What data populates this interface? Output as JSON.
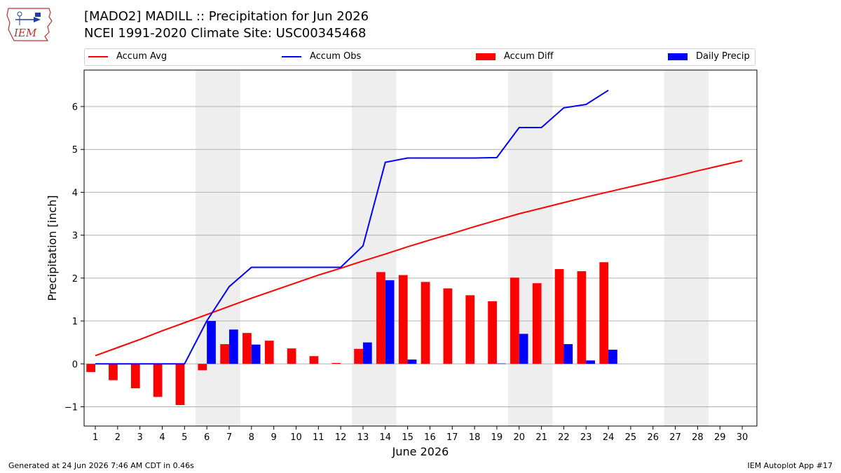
{
  "header": {
    "title_line1": "[MADO2] MADILL :: Precipitation for Jun 2026",
    "title_line2": "NCEI 1991-2020 Climate Site: USC00345468",
    "logo_text": "IEM"
  },
  "footer": {
    "left": "Generated at 24 Jun 2026 7:46 AM CDT in 0.46s",
    "right": "IEM Autoplot App #17"
  },
  "legend": {
    "avg": "Accum Avg",
    "obs": "Accum Obs",
    "diff": "Accum Diff",
    "daily": "Daily Precip"
  },
  "colors": {
    "avg": "#ff0000",
    "obs": "#0000ff",
    "diff": "#ff0000",
    "daily": "#0000ff",
    "weekend_shade": "#eeeeee",
    "grid": "#b0b0b0"
  },
  "chart_data": {
    "type": "bar",
    "xlabel": "June 2026",
    "ylabel": "Precipitation [inch]",
    "ylim": [
      -1.45,
      6.85
    ],
    "yticks": [
      -1,
      0,
      1,
      2,
      3,
      4,
      5,
      6
    ],
    "ytick_labels": [
      "−1",
      "0",
      "1",
      "2",
      "3",
      "4",
      "5",
      "6"
    ],
    "grid": "horizontal",
    "legend_position": "top",
    "days": [
      1,
      2,
      3,
      4,
      5,
      6,
      7,
      8,
      9,
      10,
      11,
      12,
      13,
      14,
      15,
      16,
      17,
      18,
      19,
      20,
      21,
      22,
      23,
      24,
      25,
      26,
      27,
      28,
      29,
      30
    ],
    "weekend_shading": [
      [
        6,
        7
      ],
      [
        13,
        14
      ],
      [
        20,
        21
      ],
      [
        27,
        28
      ]
    ],
    "series": [
      {
        "name": "Accum Avg",
        "kind": "line",
        "x": [
          1,
          2,
          3,
          4,
          5,
          6,
          7,
          8,
          9,
          10,
          11,
          12,
          13,
          14,
          15,
          16,
          17,
          18,
          19,
          20,
          21,
          22,
          23,
          24,
          25,
          26,
          27,
          28,
          29,
          30
        ],
        "values": [
          0.19,
          0.38,
          0.57,
          0.77,
          0.96,
          1.15,
          1.34,
          1.53,
          1.71,
          1.89,
          2.07,
          2.23,
          2.4,
          2.56,
          2.73,
          2.89,
          3.04,
          3.2,
          3.35,
          3.5,
          3.63,
          3.76,
          3.89,
          4.01,
          4.13,
          4.25,
          4.37,
          4.5,
          4.62,
          4.74
        ]
      },
      {
        "name": "Accum Obs",
        "kind": "line",
        "x": [
          1,
          2,
          3,
          4,
          5,
          6,
          7,
          8,
          9,
          10,
          11,
          12,
          13,
          14,
          15,
          16,
          17,
          18,
          19,
          20,
          21,
          22,
          23,
          24
        ],
        "values": [
          0,
          0,
          0,
          0,
          0,
          1.0,
          1.8,
          2.25,
          2.25,
          2.25,
          2.25,
          2.25,
          2.75,
          4.7,
          4.8,
          4.8,
          4.8,
          4.8,
          4.81,
          5.51,
          5.51,
          5.97,
          6.05,
          6.38
        ]
      },
      {
        "name": "Accum Diff",
        "kind": "bar",
        "offset": -0.2,
        "x": [
          1,
          2,
          3,
          4,
          5,
          6,
          7,
          8,
          9,
          10,
          11,
          12,
          13,
          14,
          15,
          16,
          17,
          18,
          19,
          20,
          21,
          22,
          23,
          24
        ],
        "values": [
          -0.19,
          -0.38,
          -0.57,
          -0.77,
          -0.96,
          -0.15,
          0.46,
          0.72,
          0.54,
          0.36,
          0.18,
          0.02,
          0.35,
          2.14,
          2.07,
          1.91,
          1.76,
          1.6,
          1.46,
          2.01,
          1.88,
          2.21,
          2.16,
          2.37
        ]
      },
      {
        "name": "Daily Precip",
        "kind": "bar",
        "offset": 0.2,
        "x": [
          1,
          2,
          3,
          4,
          5,
          6,
          7,
          8,
          9,
          10,
          11,
          12,
          13,
          14,
          15,
          16,
          17,
          18,
          19,
          20,
          21,
          22,
          23,
          24
        ],
        "values": [
          0,
          0,
          0,
          0,
          0,
          1.0,
          0.8,
          0.45,
          0,
          0,
          0,
          0,
          0.5,
          1.95,
          0.1,
          0,
          0,
          0,
          0.01,
          0.7,
          0,
          0.46,
          0.08,
          0.33
        ]
      }
    ]
  }
}
